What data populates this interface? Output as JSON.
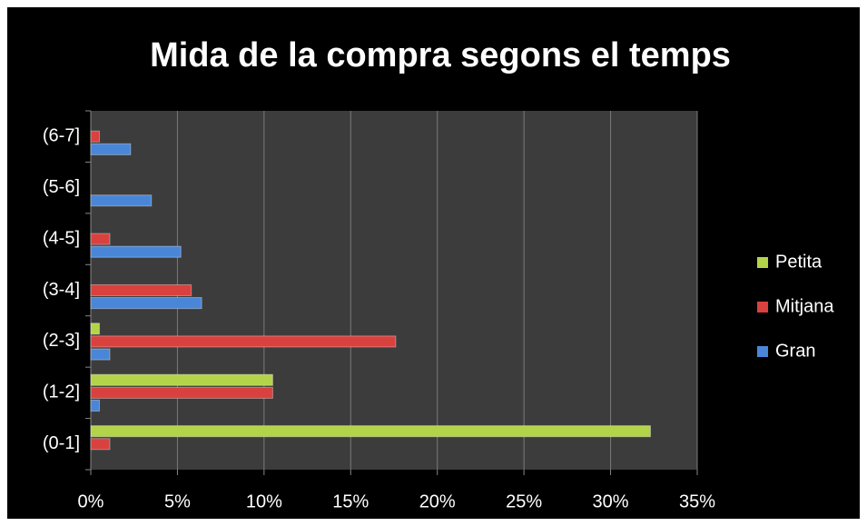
{
  "chart_data": {
    "type": "barh",
    "title": "Mida de la compra segons el temps",
    "categories": [
      "(0-1]",
      "(1-2]",
      "(2-3]",
      "(3-4]",
      "(4-5]",
      "(5-6]",
      "(6-7]"
    ],
    "series": [
      {
        "name": "Gran",
        "color": "#4a86d8",
        "values": [
          0,
          0.5,
          1.1,
          6.4,
          5.2,
          3.5,
          2.3
        ]
      },
      {
        "name": "Mitjana",
        "color": "#d9413f",
        "values": [
          1.1,
          10.5,
          17.6,
          5.8,
          1.1,
          0,
          0.5
        ]
      },
      {
        "name": "Petita",
        "color": "#b3d449",
        "values": [
          32.3,
          10.5,
          0.5,
          0,
          0,
          0,
          0
        ]
      }
    ],
    "xlim": [
      0,
      35
    ],
    "xticks": [
      {
        "value": 0,
        "label": "0%"
      },
      {
        "value": 5,
        "label": "5%"
      },
      {
        "value": 10,
        "label": "10%"
      },
      {
        "value": 15,
        "label": "15%"
      },
      {
        "value": 20,
        "label": "20%"
      },
      {
        "value": 25,
        "label": "25%"
      },
      {
        "value": 30,
        "label": "30%"
      },
      {
        "value": 35,
        "label": "35%"
      }
    ],
    "grid": true,
    "legend": "right"
  }
}
